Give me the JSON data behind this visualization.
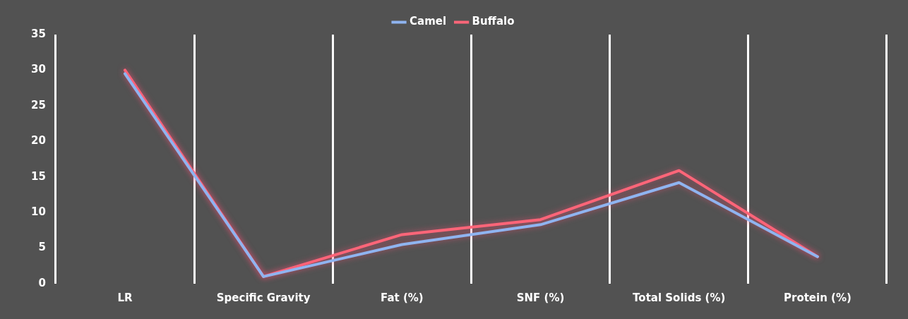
{
  "chart_data": {
    "type": "line",
    "categories": [
      "LR",
      "Specific Gravity",
      "Fat (%)",
      "SNF (%)",
      "Total Solids (%)",
      "Protein (%)"
    ],
    "series": [
      {
        "name": "Camel",
        "color": "#8fb4f0",
        "values": [
          29.5,
          1,
          5.5,
          8.3,
          14.2,
          3.8
        ]
      },
      {
        "name": "Buffalo",
        "color": "#ff6679",
        "values": [
          30,
          1,
          6.9,
          9,
          15.9,
          3.8
        ]
      }
    ],
    "ylim": [
      0,
      35
    ],
    "yticks": [
      0,
      5,
      10,
      15,
      20,
      25,
      30,
      35
    ],
    "grid": "x",
    "legend": "top",
    "marker": "none",
    "line_style": "solid"
  }
}
